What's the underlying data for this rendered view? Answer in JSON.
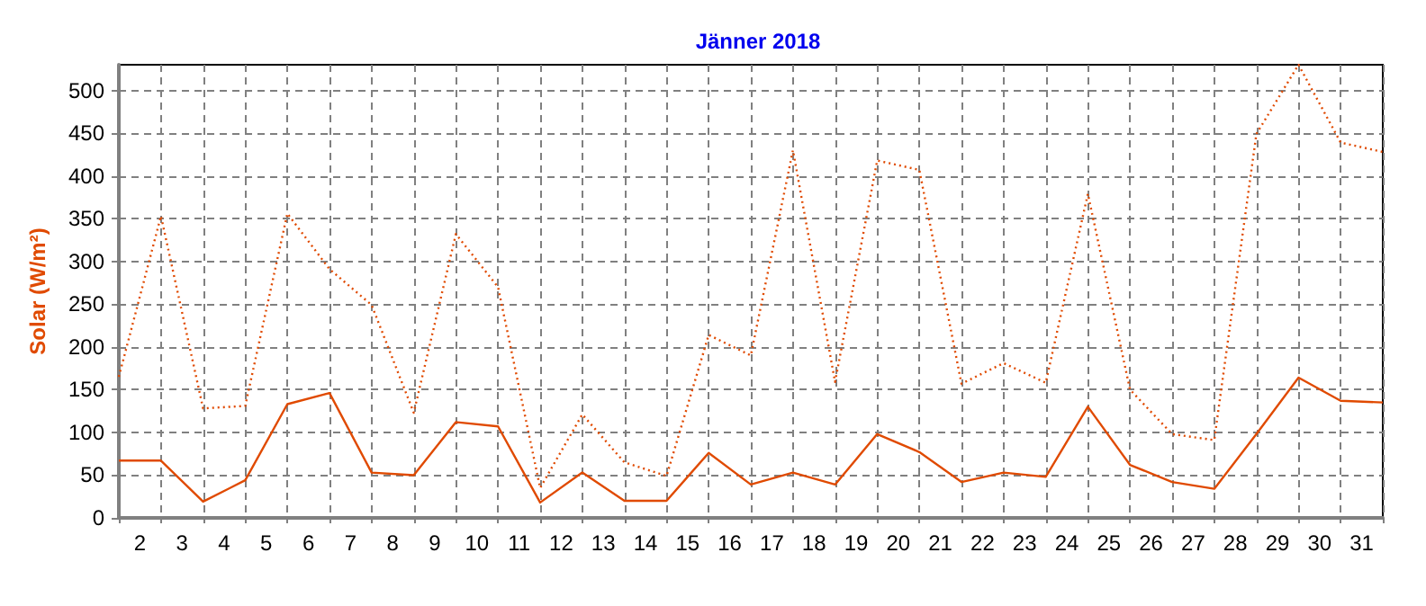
{
  "chart_data": {
    "type": "line",
    "title": "Jänner 2018",
    "ylabel": "Solar (W/m²)",
    "x": [
      1,
      2,
      3,
      4,
      5,
      6,
      7,
      8,
      9,
      10,
      11,
      12,
      13,
      14,
      15,
      16,
      17,
      18,
      19,
      20,
      21,
      22,
      23,
      24,
      25,
      26,
      27,
      28,
      29,
      30,
      31
    ],
    "series": [
      {
        "color": "#e04a00",
        "line_style": "solid",
        "values": [
          67,
          67,
          19,
          44,
          133,
          146,
          53,
          50,
          112,
          107,
          18,
          53,
          20,
          20,
          76,
          39,
          53,
          39,
          98,
          77,
          42,
          53,
          48,
          130,
          62,
          42,
          34,
          98,
          164,
          137,
          135
        ]
      },
      {
        "color": "#e04a00",
        "line_style": "dotted",
        "values": [
          165,
          353,
          128,
          131,
          356,
          291,
          249,
          123,
          332,
          270,
          35,
          121,
          65,
          49,
          214,
          190,
          430,
          159,
          418,
          407,
          157,
          181,
          158,
          379,
          150,
          98,
          91,
          449,
          530,
          439,
          428
        ]
      }
    ],
    "xlim": [
      1,
      31
    ],
    "xticks": [
      {
        "value": 1,
        "label": null
      },
      {
        "value": 1.5,
        "label": "2"
      },
      {
        "value": 2,
        "label": null
      },
      {
        "value": 2.5,
        "label": "3"
      },
      {
        "value": 3,
        "label": null
      },
      {
        "value": 3.5,
        "label": "4"
      },
      {
        "value": 4,
        "label": null
      },
      {
        "value": 4.5,
        "label": "5"
      },
      {
        "value": 5,
        "label": null
      },
      {
        "value": 5.5,
        "label": "6"
      },
      {
        "value": 6,
        "label": null
      },
      {
        "value": 6.5,
        "label": "7"
      },
      {
        "value": 7,
        "label": null
      },
      {
        "value": 7.5,
        "label": "8"
      },
      {
        "value": 8,
        "label": null
      },
      {
        "value": 8.5,
        "label": "9"
      },
      {
        "value": 9,
        "label": null
      },
      {
        "value": 9.5,
        "label": "10"
      },
      {
        "value": 10,
        "label": null
      },
      {
        "value": 10.5,
        "label": "11"
      },
      {
        "value": 11,
        "label": null
      },
      {
        "value": 11.5,
        "label": "12"
      },
      {
        "value": 12,
        "label": null
      },
      {
        "value": 12.5,
        "label": "13"
      },
      {
        "value": 13,
        "label": null
      },
      {
        "value": 13.5,
        "label": "14"
      },
      {
        "value": 14,
        "label": null
      },
      {
        "value": 14.5,
        "label": "15"
      },
      {
        "value": 15,
        "label": null
      },
      {
        "value": 15.5,
        "label": "16"
      },
      {
        "value": 16,
        "label": null
      },
      {
        "value": 16.5,
        "label": "17"
      },
      {
        "value": 17,
        "label": null
      },
      {
        "value": 17.5,
        "label": "18"
      },
      {
        "value": 18,
        "label": null
      },
      {
        "value": 18.5,
        "label": "19"
      },
      {
        "value": 19,
        "label": null
      },
      {
        "value": 19.5,
        "label": "20"
      },
      {
        "value": 20,
        "label": null
      },
      {
        "value": 20.5,
        "label": "21"
      },
      {
        "value": 21,
        "label": null
      },
      {
        "value": 21.5,
        "label": "22"
      },
      {
        "value": 22,
        "label": null
      },
      {
        "value": 22.5,
        "label": "23"
      },
      {
        "value": 23,
        "label": null
      },
      {
        "value": 23.5,
        "label": "24"
      },
      {
        "value": 24,
        "label": null
      },
      {
        "value": 24.5,
        "label": "25"
      },
      {
        "value": 25,
        "label": null
      },
      {
        "value": 25.5,
        "label": "26"
      },
      {
        "value": 26,
        "label": null
      },
      {
        "value": 26.5,
        "label": "27"
      },
      {
        "value": 27,
        "label": null
      },
      {
        "value": 27.5,
        "label": "28"
      },
      {
        "value": 28,
        "label": null
      },
      {
        "value": 28.5,
        "label": "29"
      },
      {
        "value": 29,
        "label": null
      },
      {
        "value": 29.5,
        "label": "30"
      },
      {
        "value": 30,
        "label": null
      },
      {
        "value": 30.5,
        "label": "31"
      },
      {
        "value": 31,
        "label": null
      }
    ],
    "ylim": [
      0,
      530
    ],
    "yticks": [
      0,
      50,
      100,
      150,
      200,
      250,
      300,
      350,
      400,
      450,
      500
    ],
    "grid": true,
    "legend": false,
    "marker": "none"
  }
}
